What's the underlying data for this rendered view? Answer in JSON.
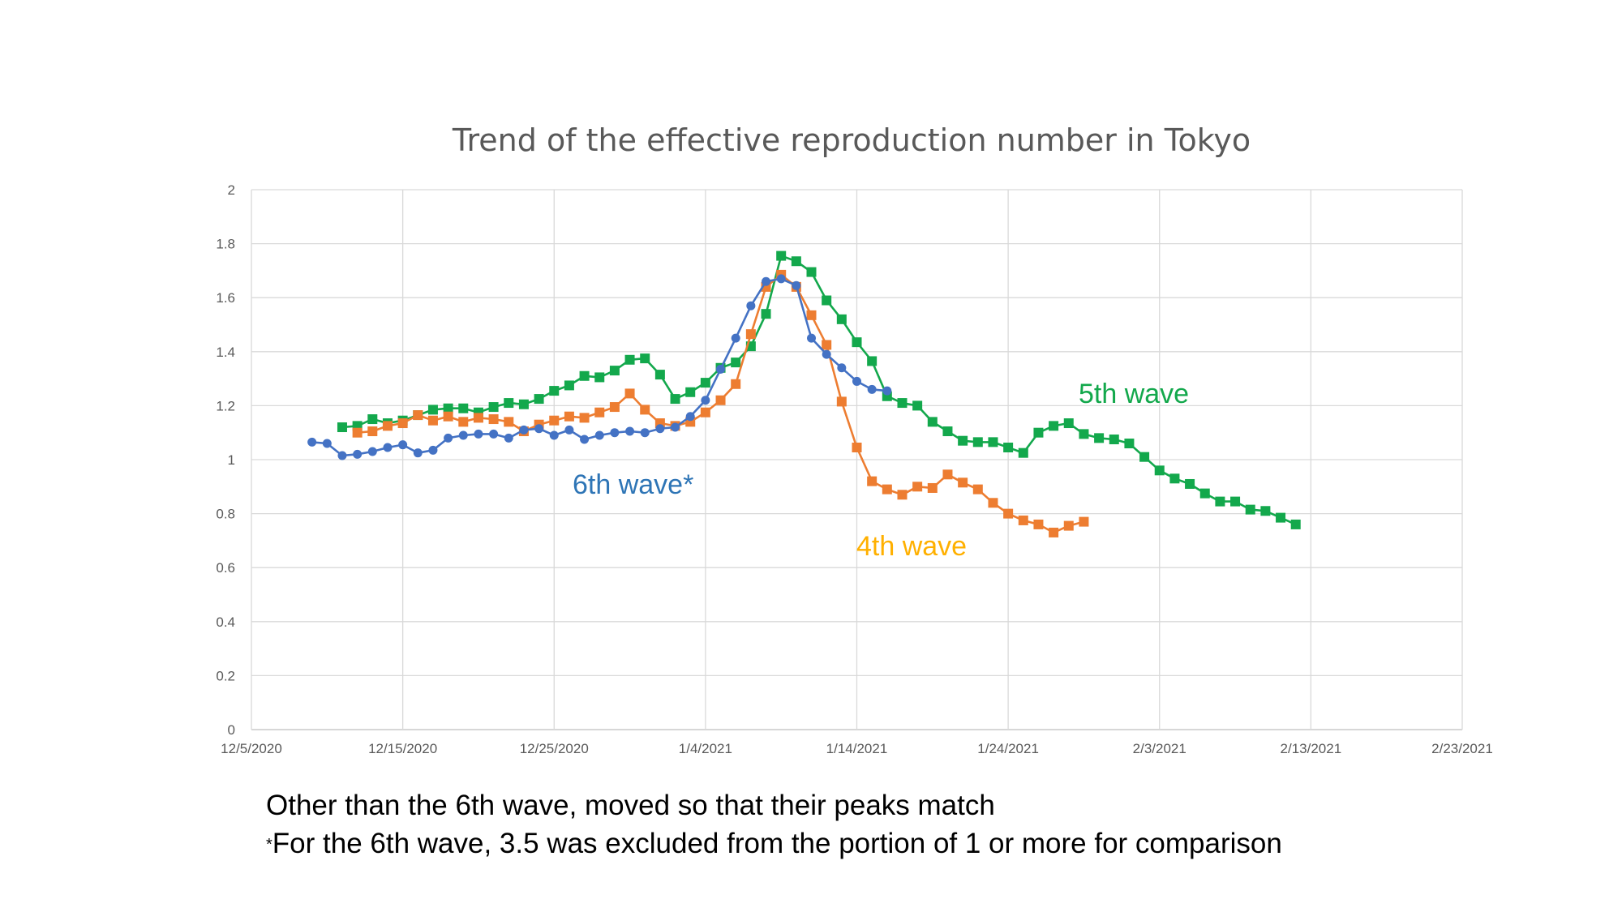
{
  "chart_data": {
    "type": "line",
    "title": "Trend of the effective reproduction number in Tokyo",
    "xlabel": "",
    "ylabel": "",
    "x_axis": {
      "min": "2020-12-05",
      "max": "2021-02-23",
      "ticks": [
        "12/5/2020",
        "12/15/2020",
        "12/25/2020",
        "1/4/2021",
        "1/14/2021",
        "1/24/2021",
        "2/3/2021",
        "2/13/2021",
        "2/23/2021"
      ]
    },
    "y_axis": {
      "min": 0,
      "max": 2,
      "ticks": [
        "0",
        "0.2",
        "0.4",
        "0.6",
        "0.8",
        "1",
        "1.2",
        "1.4",
        "1.6",
        "1.8",
        "2"
      ]
    },
    "grid": true,
    "legend": "none",
    "series": [
      {
        "name": "5th wave",
        "color": "#13a84c",
        "marker": "square",
        "start_date": "2020-12-11",
        "values": [
          1.12,
          1.125,
          1.15,
          1.135,
          1.145,
          1.165,
          1.185,
          1.19,
          1.19,
          1.175,
          1.195,
          1.21,
          1.205,
          1.225,
          1.255,
          1.275,
          1.31,
          1.305,
          1.33,
          1.37,
          1.375,
          1.315,
          1.225,
          1.25,
          1.285,
          1.34,
          1.36,
          1.42,
          1.54,
          1.755,
          1.735,
          1.695,
          1.59,
          1.52,
          1.435,
          1.365,
          1.235,
          1.21,
          1.2,
          1.14,
          1.105,
          1.07,
          1.065,
          1.065,
          1.045,
          1.025,
          1.1,
          1.125,
          1.135,
          1.095,
          1.08,
          1.075,
          1.06,
          1.01,
          0.96,
          0.93,
          0.91,
          0.875,
          0.845,
          0.845,
          0.815,
          0.81,
          0.785,
          0.76
        ]
      },
      {
        "name": "4th wave",
        "color": "#ed7d31",
        "marker": "square",
        "start_date": "2020-12-12",
        "values": [
          1.1,
          1.105,
          1.125,
          1.135,
          1.165,
          1.145,
          1.16,
          1.14,
          1.155,
          1.15,
          1.14,
          1.105,
          1.13,
          1.145,
          1.16,
          1.155,
          1.175,
          1.195,
          1.245,
          1.185,
          1.135,
          1.125,
          1.14,
          1.175,
          1.22,
          1.28,
          1.465,
          1.64,
          1.685,
          1.64,
          1.535,
          1.425,
          1.215,
          1.045,
          0.92,
          0.89,
          0.87,
          0.9,
          0.895,
          0.945,
          0.915,
          0.89,
          0.84,
          0.8,
          0.775,
          0.76,
          0.73,
          0.755,
          0.77
        ]
      },
      {
        "name": "6th wave*",
        "color": "#4472c4",
        "marker": "circle",
        "start_date": "2020-12-09",
        "values": [
          1.065,
          1.06,
          1.015,
          1.02,
          1.03,
          1.045,
          1.055,
          1.025,
          1.035,
          1.08,
          1.09,
          1.095,
          1.095,
          1.08,
          1.11,
          1.115,
          1.09,
          1.11,
          1.075,
          1.09,
          1.1,
          1.105,
          1.1,
          1.115,
          1.12,
          1.16,
          1.22,
          1.335,
          1.45,
          1.57,
          1.66,
          1.67,
          1.645,
          1.45,
          1.39,
          1.34,
          1.29,
          1.26,
          1.255
        ]
      }
    ],
    "annotations": [
      {
        "text": "6th wave*",
        "color": "#2e75b6"
      },
      {
        "text": "5th wave",
        "color": "#13a84c"
      },
      {
        "text": "4th wave",
        "color": "#ffb000"
      }
    ]
  },
  "footnotes": {
    "line1": "Other than the 6th wave, moved so that their peaks match",
    "line2_mark": "*",
    "line2": "For the 6th wave, 3.5 was excluded from the portion of 1 or more for comparison"
  }
}
